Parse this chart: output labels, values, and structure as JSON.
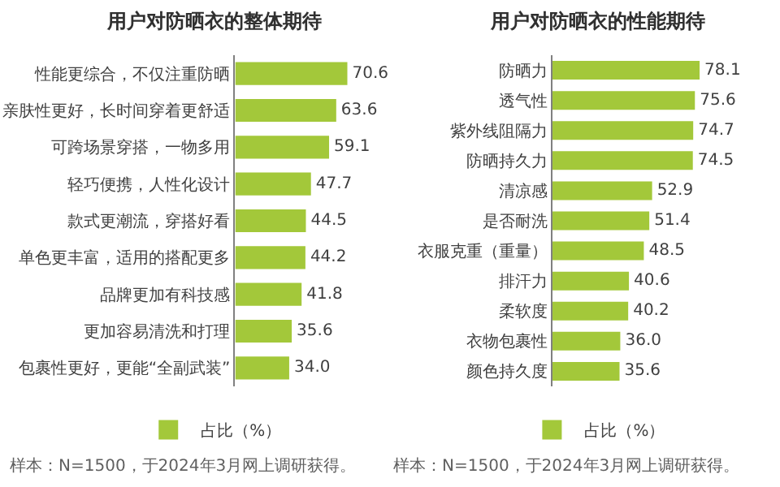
{
  "chart_data": [
    {
      "type": "bar",
      "orientation": "horizontal",
      "title": "用户对防晒衣的整体期待",
      "categories": [
        "性能更综合，不仅注重防晒",
        "亲肤性更好，长时间穿着更舒适",
        "可跨场景穿搭，一物多用",
        "轻巧便携，人性化设计",
        "款式更潮流，穿搭好看",
        "单色更丰富，适用的搭配更多",
        "品牌更加有科技感",
        "更加容易清洗和打理",
        "包裹性更好，更能“全副武装”"
      ],
      "series": [
        {
          "name": "占比（%）",
          "color": "#a3c83a",
          "values": [
            70.6,
            63.6,
            59.1,
            47.7,
            44.5,
            44.2,
            41.8,
            35.6,
            34.0
          ],
          "value_labels": [
            "70.6",
            "63.6",
            "59.1",
            "47.7",
            "44.5",
            "44.2",
            "41.8",
            "35.6",
            "34.0"
          ]
        }
      ],
      "legend": "bottom",
      "annotations": [
        "样本：N=1500，于2024年3月网上调研获得。"
      ]
    },
    {
      "type": "bar",
      "orientation": "horizontal",
      "title": "用户对防晒衣的性能期待",
      "categories": [
        "防晒力",
        "透气性",
        "紫外线阻隔力",
        "防晒持久力",
        "清凉感",
        "是否耐洗",
        "衣服克重（重量）",
        "排汗力",
        "柔软度",
        "衣物包裹性",
        "颜色持久度"
      ],
      "series": [
        {
          "name": "占比（%）",
          "color": "#a3c83a",
          "values": [
            78.1,
            75.6,
            74.7,
            74.5,
            52.9,
            51.4,
            48.5,
            40.6,
            40.2,
            36.0,
            35.6
          ],
          "value_labels": [
            "78.1",
            "75.6",
            "74.7",
            "74.5",
            "52.9",
            "51.4",
            "48.5",
            "40.6",
            "40.2",
            "36.0",
            "35.6"
          ]
        }
      ],
      "legend": "bottom",
      "annotations": [
        "样本：N=1500，于2024年3月网上调研获得。"
      ]
    }
  ]
}
